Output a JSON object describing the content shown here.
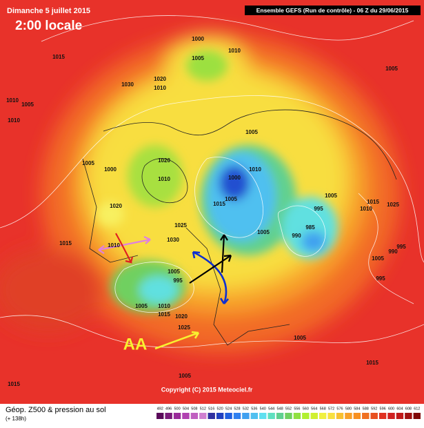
{
  "header": {
    "date": "Dimanche 5 juillet 2015",
    "time": "2:00 locale",
    "model": "Ensemble GEFS (Run de contrôle) - 06 Z du 29/06/2015"
  },
  "map": {
    "annotation": "AA",
    "copyright": "Copyright (C) 2015 Meteociel.fr",
    "isobar_labels": [
      "1015",
      "1010",
      "1005",
      "1010",
      "1030",
      "1020",
      "1010",
      "1000",
      "1010",
      "1005",
      "1005",
      "1005",
      "1000",
      "1020",
      "1010",
      "1000",
      "1010",
      "1005",
      "1005",
      "1015",
      "1020",
      "1025",
      "1030",
      "1015",
      "1010",
      "1005",
      "995",
      "1005",
      "1010",
      "1015",
      "1020",
      "1025",
      "990",
      "995",
      "985",
      "1005",
      "1010",
      "1015",
      "1025",
      "995",
      "990",
      "1005",
      "995",
      "1005",
      "1015",
      "1015",
      "1005",
      "1005"
    ]
  },
  "legend": {
    "title": "Géop. Z500 & pression au sol",
    "subtitle": "(+ 138h)",
    "labels": [
      492,
      496,
      500,
      504,
      508,
      512,
      516,
      520,
      524,
      528,
      532,
      536,
      540,
      544,
      548,
      552,
      556,
      560,
      564,
      568,
      572,
      576,
      580,
      584,
      588,
      592,
      596,
      600,
      604,
      608,
      612
    ],
    "colors": [
      "#5a0a5a",
      "#7a1a7a",
      "#9a2a9a",
      "#b040b0",
      "#c060c0",
      "#d080d0",
      "#3030a0",
      "#2040c0",
      "#2060e0",
      "#3080f0",
      "#40a0f0",
      "#50c0f0",
      "#60e0f0",
      "#60e0c0",
      "#60d090",
      "#70d060",
      "#90e040",
      "#b0f030",
      "#d0f030",
      "#f0f040",
      "#f8e040",
      "#f8c030",
      "#f8a028",
      "#f89020",
      "#f07020",
      "#e85020",
      "#e03020",
      "#d02020",
      "#c01818",
      "#a01010",
      "#800808"
    ]
  }
}
